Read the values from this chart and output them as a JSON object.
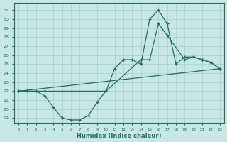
{
  "xlabel": "Humidex (Indice chaleur)",
  "bg_color": "#c8e8e4",
  "line_color": "#1e6e6a",
  "grid_color": "#a8d0cc",
  "ylim": [
    18.5,
    31.8
  ],
  "xlim": [
    -0.5,
    23.5
  ],
  "yticks": [
    19,
    20,
    21,
    22,
    23,
    24,
    25,
    26,
    27,
    28,
    29,
    30,
    31
  ],
  "xticks": [
    0,
    1,
    2,
    3,
    4,
    5,
    6,
    7,
    8,
    9,
    10,
    11,
    12,
    13,
    14,
    15,
    16,
    17,
    18,
    19,
    20,
    21,
    22,
    23
  ],
  "line1_x": [
    0,
    1,
    2,
    3,
    4,
    5,
    6,
    7,
    8,
    9,
    10,
    11,
    12,
    13,
    14,
    15,
    16,
    17,
    18,
    19,
    20,
    21,
    22,
    23
  ],
  "line1_y": [
    22,
    22,
    22,
    21.5,
    20.2,
    19.0,
    18.8,
    18.8,
    19.3,
    20.8,
    22.0,
    24.5,
    25.5,
    25.5,
    25.0,
    30.0,
    31.0,
    29.5,
    25.0,
    25.8,
    25.8,
    25.5,
    25.2,
    24.5
  ],
  "line2_x": [
    0,
    23
  ],
  "line2_y": [
    22,
    24.5
  ],
  "line3_x": [
    0,
    3,
    10,
    14,
    15,
    16,
    17,
    19,
    20,
    21,
    22,
    23
  ],
  "line3_y": [
    22,
    22,
    22,
    25.5,
    25.5,
    29.5,
    28.2,
    25.5,
    25.8,
    25.5,
    25.2,
    24.5
  ]
}
